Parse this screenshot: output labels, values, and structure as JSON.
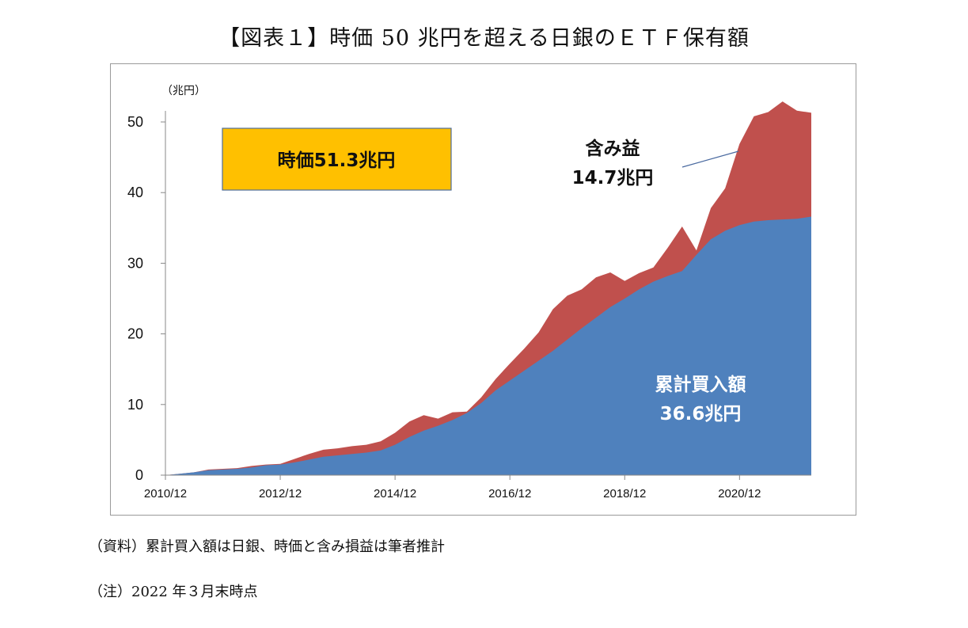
{
  "title": "【図表１】時価 50 兆円を超える日銀のＥＴＦ保有額",
  "source_note": "（資料）累計買入額は日銀、時価と含み損益は筆者推計",
  "footnote": "（注）2022 年３月末時点",
  "annotations": {
    "market_value_box": "時価51.3兆円",
    "unrealized_gain_line1": "含み益",
    "unrealized_gain_line2": "14.7兆円",
    "cumulative_line1": "累計買入額",
    "cumulative_line2": "36.6兆円"
  },
  "colors": {
    "cumulative_fill": "#4f81bd",
    "market_fill": "#c0504d",
    "box_fill": "#ffc000",
    "box_border": "#4f6e9a"
  },
  "chart_data": {
    "type": "area",
    "ylabel": "（兆円）",
    "xlabel": "",
    "ylim": [
      0,
      55
    ],
    "yticks": [
      0,
      10,
      20,
      30,
      40,
      50
    ],
    "x_ticks": [
      "2010/12",
      "2012/12",
      "2014/12",
      "2016/12",
      "2018/12",
      "2020/12"
    ],
    "x_range": [
      "2010/12",
      "2022/03"
    ],
    "legend": "none",
    "grid": false,
    "series": [
      {
        "name": "累計買入額",
        "points": [
          [
            "2010/12",
            0.0
          ],
          [
            "2011/03",
            0.2
          ],
          [
            "2011/06",
            0.4
          ],
          [
            "2011/09",
            0.7
          ],
          [
            "2011/12",
            0.8
          ],
          [
            "2012/03",
            0.9
          ],
          [
            "2012/06",
            1.1
          ],
          [
            "2012/09",
            1.4
          ],
          [
            "2012/12",
            1.5
          ],
          [
            "2013/03",
            1.8
          ],
          [
            "2013/06",
            2.2
          ],
          [
            "2013/09",
            2.6
          ],
          [
            "2013/12",
            2.8
          ],
          [
            "2014/03",
            3.0
          ],
          [
            "2014/06",
            3.2
          ],
          [
            "2014/09",
            3.5
          ],
          [
            "2014/12",
            4.3
          ],
          [
            "2015/03",
            5.4
          ],
          [
            "2015/06",
            6.3
          ],
          [
            "2015/09",
            7.0
          ],
          [
            "2015/12",
            7.8
          ],
          [
            "2016/03",
            8.8
          ],
          [
            "2016/06",
            10.2
          ],
          [
            "2016/09",
            12.0
          ],
          [
            "2016/12",
            13.4
          ],
          [
            "2017/03",
            14.8
          ],
          [
            "2017/06",
            16.2
          ],
          [
            "2017/09",
            17.6
          ],
          [
            "2017/12",
            19.2
          ],
          [
            "2018/03",
            20.8
          ],
          [
            "2018/06",
            22.3
          ],
          [
            "2018/09",
            23.8
          ],
          [
            "2018/12",
            25.0
          ],
          [
            "2019/03",
            26.3
          ],
          [
            "2019/06",
            27.4
          ],
          [
            "2019/09",
            28.2
          ],
          [
            "2019/12",
            28.9
          ],
          [
            "2020/03",
            31.2
          ],
          [
            "2020/06",
            33.4
          ],
          [
            "2020/09",
            34.6
          ],
          [
            "2020/12",
            35.4
          ],
          [
            "2021/03",
            35.9
          ],
          [
            "2021/06",
            36.1
          ],
          [
            "2021/09",
            36.2
          ],
          [
            "2021/12",
            36.3
          ],
          [
            "2022/03",
            36.6
          ]
        ]
      },
      {
        "name": "時価",
        "points": [
          [
            "2010/12",
            0.0
          ],
          [
            "2011/03",
            0.2
          ],
          [
            "2011/06",
            0.4
          ],
          [
            "2011/09",
            0.8
          ],
          [
            "2011/12",
            0.9
          ],
          [
            "2012/03",
            1.0
          ],
          [
            "2012/06",
            1.3
          ],
          [
            "2012/09",
            1.5
          ],
          [
            "2012/12",
            1.6
          ],
          [
            "2013/03",
            2.3
          ],
          [
            "2013/06",
            3.0
          ],
          [
            "2013/09",
            3.6
          ],
          [
            "2013/12",
            3.8
          ],
          [
            "2014/03",
            4.1
          ],
          [
            "2014/06",
            4.3
          ],
          [
            "2014/09",
            4.8
          ],
          [
            "2014/12",
            6.0
          ],
          [
            "2015/03",
            7.6
          ],
          [
            "2015/06",
            8.5
          ],
          [
            "2015/09",
            8.0
          ],
          [
            "2015/12",
            8.9
          ],
          [
            "2016/03",
            9.0
          ],
          [
            "2016/06",
            11.0
          ],
          [
            "2016/09",
            13.6
          ],
          [
            "2016/12",
            15.8
          ],
          [
            "2017/03",
            17.9
          ],
          [
            "2017/06",
            20.2
          ],
          [
            "2017/09",
            23.5
          ],
          [
            "2017/12",
            25.4
          ],
          [
            "2018/03",
            26.3
          ],
          [
            "2018/06",
            28.0
          ],
          [
            "2018/09",
            28.7
          ],
          [
            "2018/12",
            27.5
          ],
          [
            "2019/03",
            28.6
          ],
          [
            "2019/06",
            29.4
          ],
          [
            "2019/09",
            32.2
          ],
          [
            "2019/12",
            35.2
          ],
          [
            "2020/03",
            31.8
          ],
          [
            "2020/06",
            37.8
          ],
          [
            "2020/09",
            40.6
          ],
          [
            "2020/12",
            46.9
          ],
          [
            "2021/03",
            50.8
          ],
          [
            "2021/06",
            51.4
          ],
          [
            "2021/09",
            52.9
          ],
          [
            "2021/12",
            51.6
          ],
          [
            "2022/03",
            51.3
          ]
        ]
      }
    ]
  }
}
